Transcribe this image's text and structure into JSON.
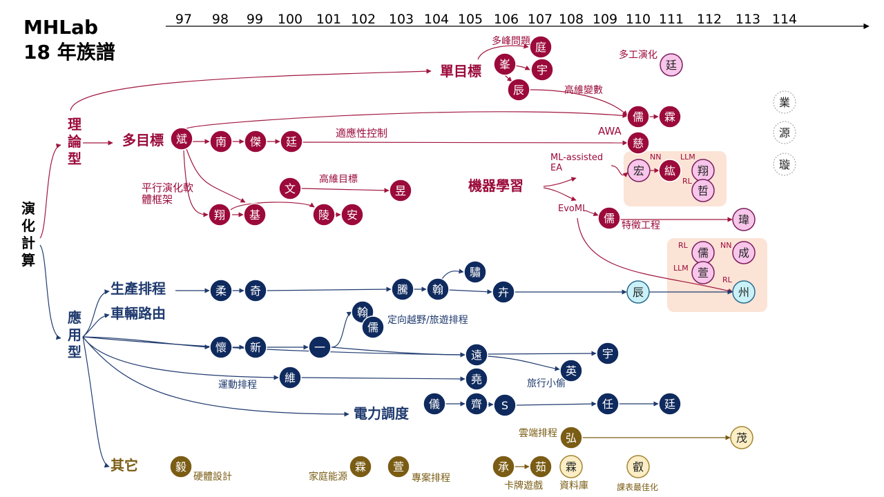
{
  "header": {
    "title": "MHLab",
    "subtitle": "18 年族譜"
  },
  "timeline": {
    "years": [
      97,
      98,
      99,
      100,
      101,
      102,
      103,
      104,
      105,
      106,
      107,
      108,
      109,
      110,
      111,
      112,
      113,
      114
    ]
  },
  "branches": [
    "演化計算",
    "理論型",
    "單目標",
    "多目標",
    "機器學習",
    "應用型",
    "生產排程",
    "車輛路由",
    "電力調度",
    "其它"
  ],
  "annotations": [
    "多峰問題",
    "多工演化",
    "高維變數",
    "適應性控制",
    "AWA",
    "ML-assisted EA",
    "NN",
    "LLM",
    "RL",
    "EvoML",
    "特徵工程",
    "平行演化軟體框架",
    "高維目標",
    "RL",
    "NN",
    "LLM",
    "RL",
    "定向越野/旅遊排程",
    "運動排程",
    "旅行小偷",
    "雲端排程",
    "硬體設計",
    "家庭能源",
    "專案排程",
    "卡牌遊戲",
    "資料庫",
    "課表最佳化"
  ],
  "nodes": [
    "庭",
    "峯",
    "宇",
    "辰",
    "儒",
    "霖",
    "斌",
    "南",
    "傑",
    "廷",
    "慈",
    "文",
    "昱",
    "翔",
    "基",
    "陵",
    "安",
    "紘",
    "儒",
    "廷",
    "宏",
    "翔",
    "哲",
    "瑋",
    "儒",
    "成",
    "萱",
    "辰",
    "州",
    "柔",
    "奇",
    "騰",
    "翰",
    "驌",
    "卉",
    "翰",
    "儒",
    "懷",
    "新",
    "一",
    "遠",
    "宇",
    "英",
    "維",
    "堯",
    "儀",
    "齊",
    "S",
    "任",
    "廷",
    "業",
    "源",
    "璇",
    "弘",
    "毅",
    "霖",
    "萱",
    "承",
    "茹",
    "茂",
    "霖",
    "叡"
  ]
}
